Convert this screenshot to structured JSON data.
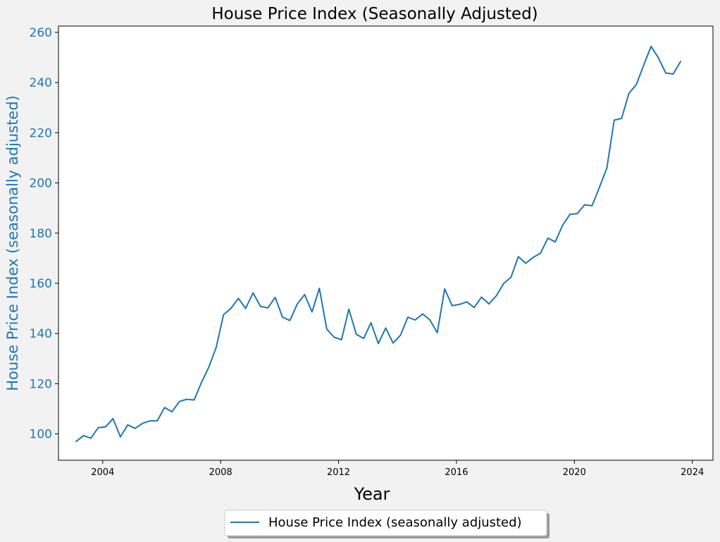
{
  "chart_data": {
    "type": "line",
    "title": "House Price Index (Seasonally Adjusted)",
    "xlabel": "Year",
    "ylabel": "House Price Index (seasonally adjusted)",
    "xlim": [
      2002.5,
      2024.7
    ],
    "ylim": [
      89.5,
      262.5
    ],
    "xticks": [
      2004,
      2008,
      2012,
      2016,
      2020,
      2024
    ],
    "yticks": [
      100,
      120,
      140,
      160,
      180,
      200,
      220,
      240,
      260
    ],
    "grid": false,
    "legend_position": "bottom-center",
    "colors": {
      "series": "#1f77b4",
      "axis_label": "#1f77b4",
      "background": "#f2f2f2",
      "plot_area": "#ffffff"
    },
    "series": [
      {
        "name": "House Price Index (seasonally adjusted)",
        "x": [
          2003.1,
          2003.35,
          2003.6,
          2003.85,
          2004.1,
          2004.35,
          2004.6,
          2004.85,
          2005.1,
          2005.35,
          2005.6,
          2005.85,
          2006.1,
          2006.35,
          2006.6,
          2006.85,
          2007.1,
          2007.35,
          2007.6,
          2007.85,
          2008.1,
          2008.35,
          2008.6,
          2008.85,
          2009.1,
          2009.35,
          2009.6,
          2009.85,
          2010.1,
          2010.35,
          2010.6,
          2010.85,
          2011.1,
          2011.35,
          2011.6,
          2011.85,
          2012.1,
          2012.35,
          2012.6,
          2012.85,
          2013.1,
          2013.35,
          2013.6,
          2013.85,
          2014.1,
          2014.35,
          2014.6,
          2014.85,
          2015.1,
          2015.35,
          2015.6,
          2015.85,
          2016.1,
          2016.35,
          2016.6,
          2016.85,
          2017.1,
          2017.35,
          2017.6,
          2017.85,
          2018.1,
          2018.35,
          2018.6,
          2018.85,
          2019.1,
          2019.35,
          2019.6,
          2019.85,
          2020.1,
          2020.35,
          2020.6,
          2020.85,
          2021.1,
          2021.35,
          2021.6,
          2021.85,
          2022.1,
          2022.35,
          2022.6,
          2022.85,
          2023.1,
          2023.35,
          2023.6
        ],
        "y": [
          97.0,
          99.3,
          98.3,
          102.5,
          102.8,
          106.1,
          98.8,
          103.6,
          102.2,
          104.2,
          105.2,
          105.2,
          110.5,
          108.8,
          112.9,
          113.8,
          113.5,
          120.5,
          126.6,
          134.5,
          147.5,
          150.0,
          154.0,
          150.0,
          156.2,
          150.8,
          150.2,
          154.4,
          146.5,
          145.2,
          151.8,
          155.5,
          148.6,
          158.0,
          141.8,
          138.5,
          137.5,
          149.7,
          139.7,
          138.0,
          144.3,
          136.0,
          142.2,
          136.2,
          139.3,
          146.5,
          145.4,
          147.8,
          145.4,
          140.3,
          157.8,
          151.1,
          151.6,
          152.6,
          150.4,
          154.5,
          151.8,
          155.0,
          159.9,
          162.4,
          170.6,
          168.0,
          170.3,
          172.0,
          178.0,
          176.5,
          183.1,
          187.5,
          187.8,
          191.3,
          190.9,
          198.3,
          205.9,
          225.0,
          225.7,
          235.7,
          239.2,
          246.9,
          254.4,
          249.8,
          243.8,
          243.4,
          248.4
        ]
      }
    ]
  }
}
